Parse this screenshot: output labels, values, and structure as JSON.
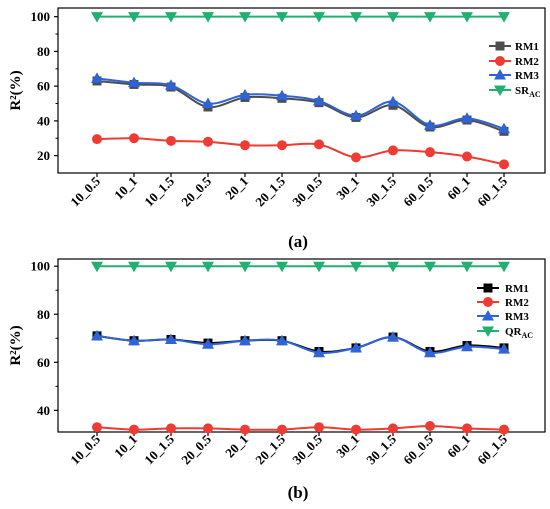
{
  "chart_data": [
    {
      "type": "line",
      "panel_label": "(a)",
      "ylabel": "R²(%)",
      "ylim": [
        10,
        105
      ],
      "yticks": [
        20,
        40,
        60,
        80,
        100
      ],
      "categories": [
        "10_0.5",
        "10_1",
        "10_1.5",
        "20_0.5",
        "20_1",
        "20_1.5",
        "30_0.5",
        "30_1",
        "30_1.5",
        "60_0.5",
        "60_1",
        "60_1.5"
      ],
      "legend_position": "right",
      "series": [
        {
          "name": "RM1",
          "sub": "",
          "color": "#4d4d4d",
          "marker": "square",
          "values": [
            63,
            61,
            59.5,
            48,
            53.5,
            53,
            50.5,
            42,
            49,
            36.5,
            40.5,
            34
          ]
        },
        {
          "name": "RM2",
          "sub": "",
          "color": "#ee3b33",
          "marker": "circle",
          "values": [
            29.5,
            30,
            28.5,
            28,
            26,
            26,
            26.5,
            19,
            23,
            22,
            19.5,
            15
          ]
        },
        {
          "name": "RM3",
          "sub": "",
          "color": "#2f64d6",
          "marker": "triangle-up",
          "values": [
            64.5,
            62,
            60.5,
            50,
            55,
            54.5,
            51.5,
            43,
            51,
            37.5,
            41.5,
            35.5
          ]
        },
        {
          "name": "SR",
          "sub": "AC",
          "color": "#22b070",
          "marker": "triangle-down",
          "values": [
            100,
            100,
            100,
            100,
            100,
            100,
            100,
            100,
            100,
            100,
            100,
            100
          ]
        }
      ]
    },
    {
      "type": "line",
      "panel_label": "(b)",
      "ylabel": "R²(%)",
      "ylim": [
        31,
        103
      ],
      "yticks": [
        40,
        60,
        80,
        100
      ],
      "categories": [
        "10_0.5",
        "10_1",
        "10_1.5",
        "20_0.5",
        "20_1",
        "20_1.5",
        "30_0.5",
        "30_1",
        "30_1.5",
        "60_0.5",
        "60_1",
        "60_1.5"
      ],
      "legend_position": "right",
      "series": [
        {
          "name": "RM1",
          "sub": "",
          "color": "#000000",
          "marker": "square",
          "values": [
            71,
            69,
            69.5,
            68,
            69,
            69,
            64.5,
            66,
            70.5,
            64.5,
            67,
            66
          ]
        },
        {
          "name": "RM2",
          "sub": "",
          "color": "#ee3b33",
          "marker": "circle",
          "values": [
            33,
            32,
            32.5,
            32.5,
            32,
            32,
            33,
            32,
            32.5,
            33.5,
            32.5,
            32
          ]
        },
        {
          "name": "RM3",
          "sub": "",
          "color": "#2f64d6",
          "marker": "triangle-up",
          "values": [
            71,
            69,
            69.5,
            67.5,
            69,
            69,
            64,
            66,
            70.5,
            64,
            66.5,
            65.5
          ]
        },
        {
          "name": "QR",
          "sub": "AC",
          "color": "#22b070",
          "marker": "triangle-down",
          "values": [
            100,
            100,
            100,
            100,
            100,
            100,
            100,
            100,
            100,
            100,
            100,
            100
          ]
        }
      ]
    }
  ]
}
